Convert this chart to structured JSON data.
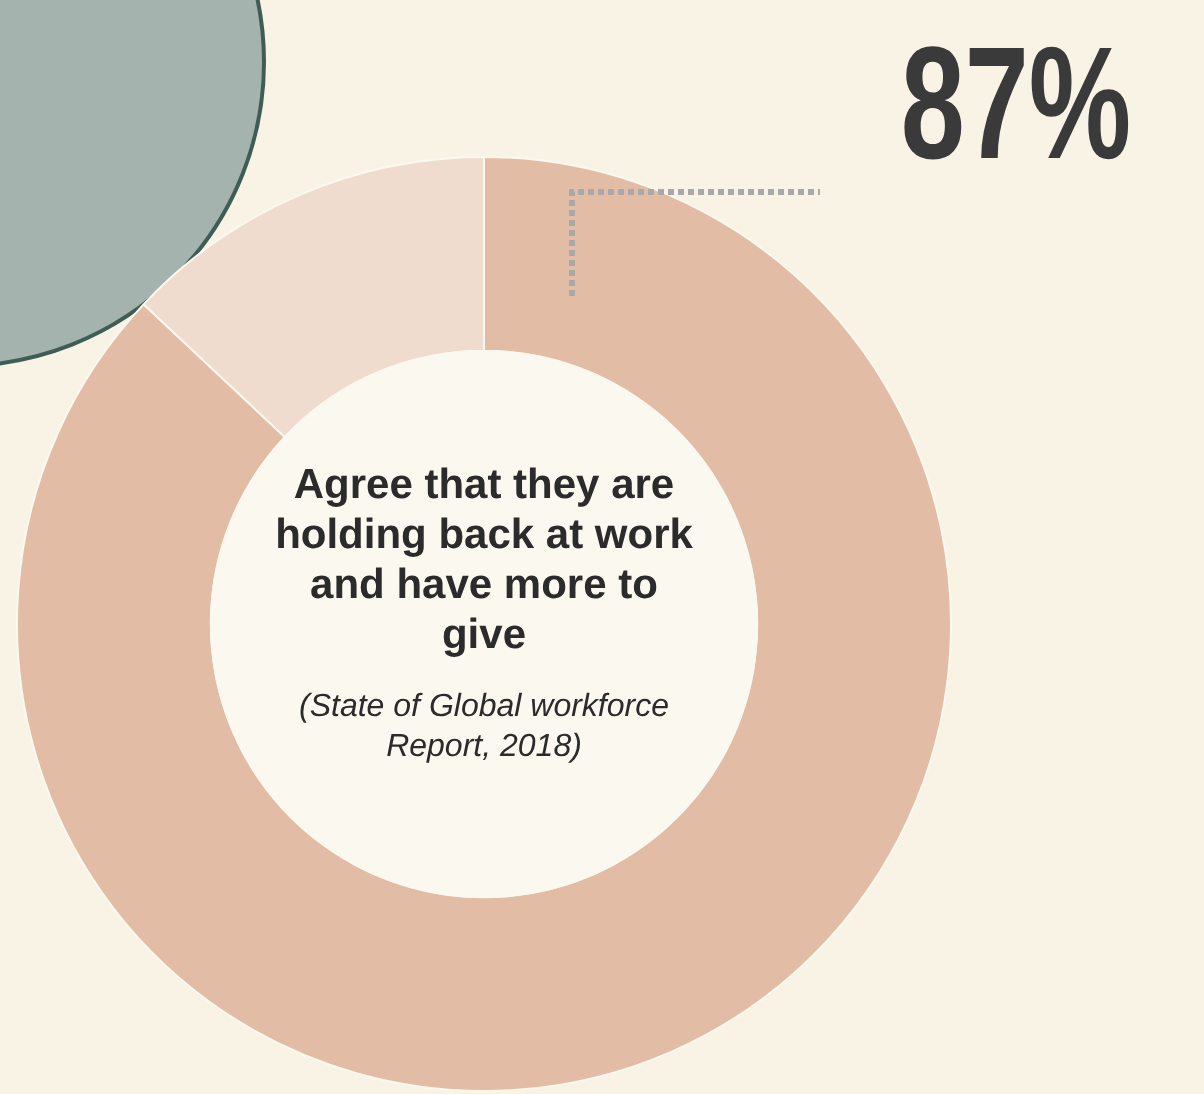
{
  "chart_data": {
    "type": "donut",
    "title": "Agree that they are holding back at work and have more to give",
    "annotations": [
      "(State of Global workforce Report, 2018)"
    ],
    "categories": [
      null,
      null
    ],
    "values": [
      87,
      13
    ],
    "colors": [
      "#e2bca5",
      "#f0dccf"
    ],
    "value_labels": [
      "87%",
      null
    ],
    "legend": false
  }
}
